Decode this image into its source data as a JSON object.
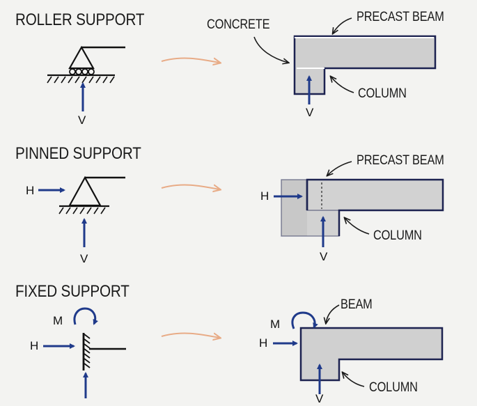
{
  "colors": {
    "beam_fill": "#cfcfcf",
    "outline": "#1c2250",
    "force_arrow": "#1f3a8a",
    "transition_arrow": "#e8ab86",
    "ink": "#1a1a1a"
  },
  "rows": [
    {
      "title": "ROLLER SUPPORT",
      "forces": {
        "v": "V"
      },
      "labels": {
        "concrete": "CONCRETE",
        "beam": "PRECAST BEAM",
        "column": "COLUMN"
      }
    },
    {
      "title": "PINNED SUPPORT",
      "forces": {
        "h": "H",
        "v": "V"
      },
      "labels": {
        "beam": "PRECAST BEAM",
        "column": "COLUMN"
      }
    },
    {
      "title": "FIXED SUPPORT",
      "forces": {
        "m": "M",
        "h": "H",
        "v": "V"
      },
      "labels": {
        "beam": "BEAM",
        "column": "COLUMN"
      }
    }
  ]
}
